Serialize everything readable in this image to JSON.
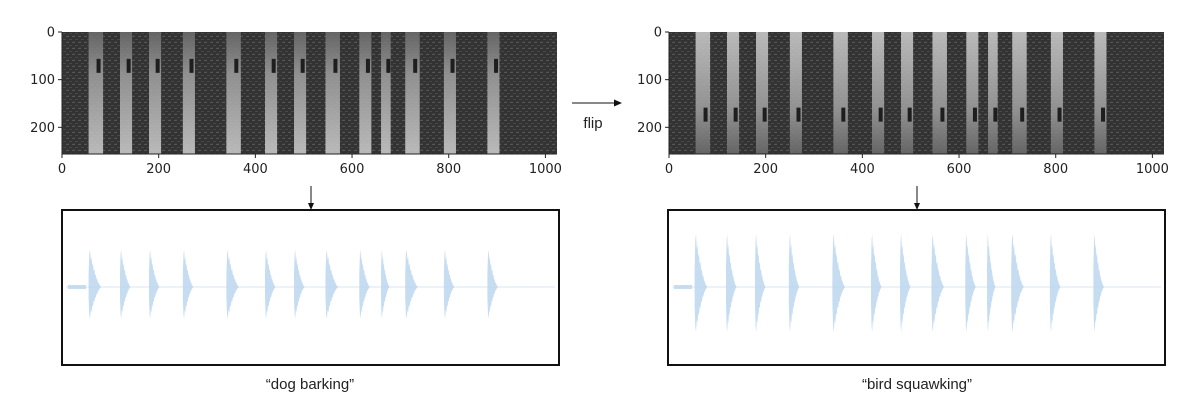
{
  "left_panel": {
    "spectrogram": {
      "x_ticks": [
        "0",
        "200",
        "400",
        "600",
        "800",
        "1000"
      ],
      "y_ticks": [
        "0",
        "100",
        "200"
      ],
      "x_range": [
        0,
        1024
      ],
      "y_range": [
        0,
        256
      ],
      "bursts": [
        [
          55,
          85
        ],
        [
          120,
          145
        ],
        [
          180,
          205
        ],
        [
          250,
          275
        ],
        [
          340,
          370
        ],
        [
          420,
          445
        ],
        [
          480,
          505
        ],
        [
          545,
          575
        ],
        [
          615,
          640
        ],
        [
          660,
          680
        ],
        [
          710,
          740
        ],
        [
          790,
          815
        ],
        [
          880,
          905
        ]
      ]
    },
    "caption": "“dog barking”"
  },
  "right_panel": {
    "spectrogram": {
      "x_ticks": [
        "0",
        "200",
        "400",
        "600",
        "800",
        "1000"
      ],
      "y_ticks": [
        "0",
        "100",
        "200"
      ],
      "x_range": [
        0,
        1024
      ],
      "y_range": [
        0,
        256
      ],
      "bursts": [
        [
          55,
          85
        ],
        [
          120,
          145
        ],
        [
          180,
          205
        ],
        [
          250,
          275
        ],
        [
          340,
          370
        ],
        [
          420,
          445
        ],
        [
          480,
          505
        ],
        [
          545,
          575
        ],
        [
          615,
          640
        ],
        [
          660,
          680
        ],
        [
          710,
          740
        ],
        [
          790,
          815
        ],
        [
          880,
          905
        ]
      ]
    },
    "caption": "“bird squawking”"
  },
  "arrow_label": "flip",
  "colors": {
    "waveform": "#bcd6ee",
    "frame": "#111111",
    "spectrogram_dark": "#2b2b2b",
    "spectrogram_light": "#bdbdbd"
  }
}
